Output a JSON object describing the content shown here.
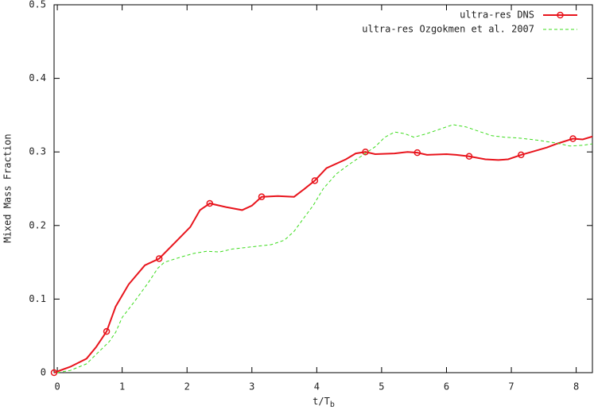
{
  "chart_data": {
    "type": "line",
    "xlabel": "t/T",
    "xlabel_sub": "b",
    "ylabel": "Mixed Mass Fraction",
    "xlim": [
      -0.05,
      8.25
    ],
    "xticks": [
      0,
      1,
      2,
      3,
      4,
      5,
      6,
      7,
      8
    ],
    "ylim": [
      0,
      0.5
    ],
    "yticks": [
      0,
      0.1,
      0.2,
      0.3,
      0.4,
      0.5
    ],
    "grid": false,
    "legend": "top-right",
    "series": [
      {
        "name": "ultra-res DNS",
        "color": "#e8141c",
        "style": "solid",
        "marker_every": 4,
        "x": [
          -0.05,
          0.2,
          0.45,
          0.6,
          0.76,
          0.9,
          1.1,
          1.35,
          1.57,
          1.85,
          2.05,
          2.2,
          2.35,
          2.6,
          2.85,
          3.0,
          3.15,
          3.4,
          3.65,
          3.8,
          3.97,
          4.15,
          4.45,
          4.6,
          4.75,
          4.9,
          5.2,
          5.4,
          5.55,
          5.7,
          6.0,
          6.15,
          6.35,
          6.6,
          6.8,
          6.95,
          7.15,
          7.35,
          7.55,
          7.7,
          7.95,
          8.1,
          8.25
        ],
        "values": [
          0,
          0.008,
          0.019,
          0.035,
          0.056,
          0.09,
          0.12,
          0.146,
          0.155,
          0.18,
          0.198,
          0.221,
          0.23,
          0.225,
          0.221,
          0.227,
          0.239,
          0.24,
          0.239,
          0.249,
          0.261,
          0.278,
          0.29,
          0.298,
          0.3,
          0.297,
          0.298,
          0.3,
          0.299,
          0.296,
          0.297,
          0.296,
          0.294,
          0.29,
          0.289,
          0.29,
          0.296,
          0.301,
          0.306,
          0.311,
          0.318,
          0.317,
          0.321
        ]
      },
      {
        "name": "ultra-res Ozgokmen et al. 2007",
        "color": "#3ddc1e",
        "style": "dashed",
        "x": [
          0,
          0.2,
          0.45,
          0.6,
          0.8,
          0.9,
          1.0,
          1.2,
          1.4,
          1.55,
          1.65,
          1.9,
          2.1,
          2.3,
          2.5,
          2.7,
          2.9,
          3.1,
          3.3,
          3.5,
          3.65,
          3.8,
          3.95,
          4.1,
          4.3,
          4.5,
          4.7,
          4.9,
          5.05,
          5.2,
          5.35,
          5.5,
          5.7,
          5.9,
          6.1,
          6.3,
          6.5,
          6.7,
          6.9,
          7.1,
          7.4,
          7.7,
          7.9,
          8.1,
          8.25
        ],
        "values": [
          0,
          0.003,
          0.012,
          0.025,
          0.042,
          0.055,
          0.075,
          0.098,
          0.122,
          0.142,
          0.15,
          0.157,
          0.162,
          0.165,
          0.164,
          0.168,
          0.17,
          0.172,
          0.174,
          0.18,
          0.192,
          0.21,
          0.228,
          0.25,
          0.27,
          0.283,
          0.295,
          0.307,
          0.32,
          0.327,
          0.325,
          0.32,
          0.325,
          0.331,
          0.337,
          0.334,
          0.328,
          0.322,
          0.32,
          0.319,
          0.316,
          0.312,
          0.308,
          0.309,
          0.311
        ]
      }
    ]
  }
}
